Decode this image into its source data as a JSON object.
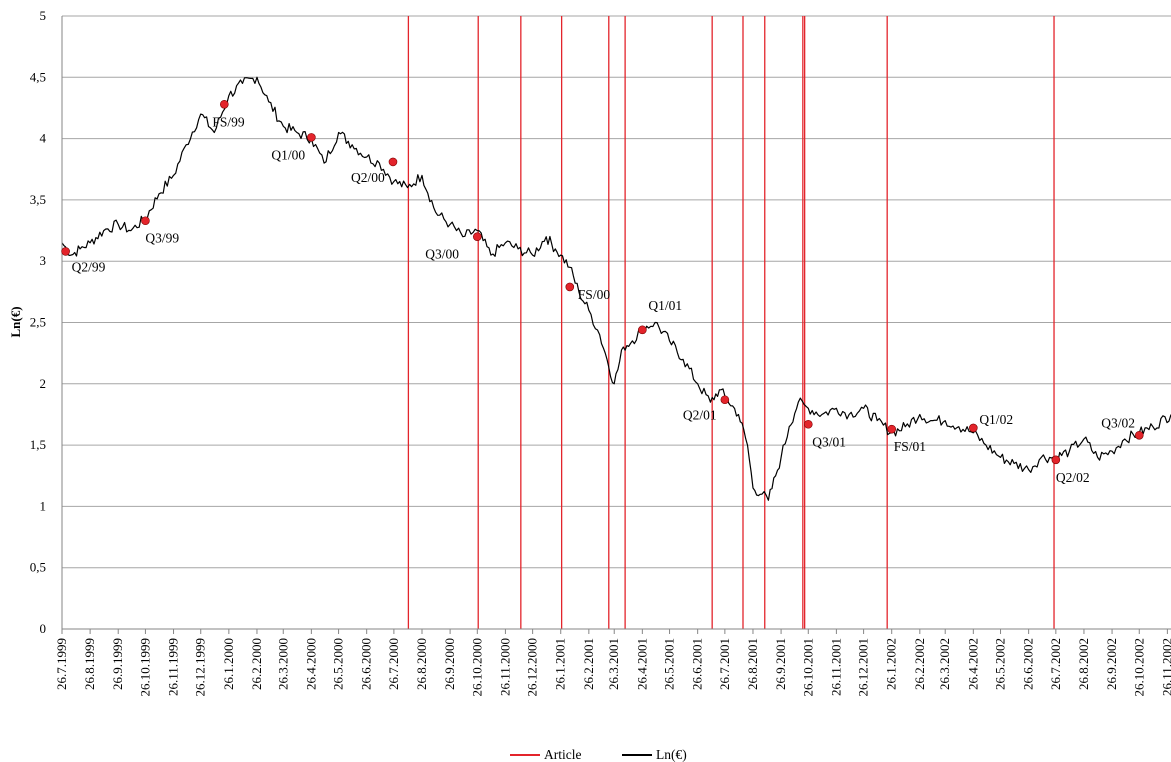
{
  "chart_data": {
    "type": "line",
    "title": "",
    "xlabel": "",
    "ylabel": "Ln(€)",
    "ylim": [
      0,
      5
    ],
    "y_ticks": [
      "0",
      "0,5",
      "1",
      "1,5",
      "2",
      "2,5",
      "3",
      "3,5",
      "4",
      "4,5",
      "5"
    ],
    "x_range": [
      "1999-07-26",
      "2002-11-30"
    ],
    "x_ticks": [
      "26.7.1999",
      "26.8.1999",
      "26.9.1999",
      "26.10.1999",
      "26.11.1999",
      "26.12.1999",
      "26.1.2000",
      "26.2.2000",
      "26.3.2000",
      "26.4.2000",
      "26.5.2000",
      "26.6.2000",
      "26.7.2000",
      "26.8.2000",
      "26.9.2000",
      "26.10.2000",
      "26.11.2000",
      "26.12.2000",
      "26.1.2001",
      "26.2.2001",
      "26.3.2001",
      "26.4.2001",
      "26.5.2001",
      "26.6.2001",
      "26.7.2001",
      "26.8.2001",
      "26.9.2001",
      "26.10.2001",
      "26.11.2001",
      "26.12.2001",
      "26.1.2002",
      "26.2.2002",
      "26.3.2002",
      "26.4.2002",
      "26.5.2002",
      "26.6.2002",
      "26.7.2002",
      "26.8.2002",
      "26.9.2002",
      "26.10.2002",
      "26.11.2002"
    ],
    "grid": true,
    "legend_position": "bottom",
    "colors": {
      "article": "#e3242b",
      "series": "#000000",
      "marker": "#e3242b",
      "grid": "#a6a6a6"
    },
    "series": [
      {
        "name": "Ln(€)",
        "x": [
          "1999-07-26",
          "1999-08-05",
          "1999-08-15",
          "1999-08-26",
          "1999-09-10",
          "1999-09-26",
          "1999-10-10",
          "1999-10-26",
          "1999-11-10",
          "1999-11-26",
          "1999-12-10",
          "1999-12-26",
          "2000-01-10",
          "2000-01-26",
          "2000-02-10",
          "2000-02-26",
          "2000-03-10",
          "2000-03-26",
          "2000-04-10",
          "2000-04-26",
          "2000-05-10",
          "2000-05-26",
          "2000-06-10",
          "2000-06-26",
          "2000-07-10",
          "2000-07-26",
          "2000-08-10",
          "2000-08-26",
          "2000-09-10",
          "2000-09-26",
          "2000-10-10",
          "2000-10-26",
          "2000-11-10",
          "2000-11-26",
          "2000-12-10",
          "2000-12-26",
          "2001-01-10",
          "2001-01-20",
          "2001-01-26",
          "2001-02-05",
          "2001-02-15",
          "2001-02-26",
          "2001-03-10",
          "2001-03-18",
          "2001-03-26",
          "2001-04-05",
          "2001-04-15",
          "2001-04-26",
          "2001-05-10",
          "2001-05-26",
          "2001-06-10",
          "2001-06-26",
          "2001-07-10",
          "2001-07-20",
          "2001-07-26",
          "2001-08-10",
          "2001-08-20",
          "2001-08-26",
          "2001-09-05",
          "2001-09-12",
          "2001-09-20",
          "2001-09-26",
          "2001-10-05",
          "2001-10-15",
          "2001-10-26",
          "2001-11-10",
          "2001-11-26",
          "2001-12-10",
          "2001-12-26",
          "2002-01-10",
          "2002-01-26",
          "2002-02-10",
          "2002-02-26",
          "2002-03-10",
          "2002-03-26",
          "2002-04-10",
          "2002-04-26",
          "2002-05-10",
          "2002-05-26",
          "2002-06-10",
          "2002-06-26",
          "2002-07-10",
          "2002-07-26",
          "2002-08-10",
          "2002-08-26",
          "2002-09-10",
          "2002-09-26",
          "2002-10-10",
          "2002-10-26",
          "2002-11-10",
          "2002-11-30"
        ],
        "values": [
          3.15,
          3.05,
          3.1,
          3.15,
          3.25,
          3.3,
          3.25,
          3.35,
          3.55,
          3.7,
          3.95,
          4.2,
          4.05,
          4.35,
          4.45,
          4.5,
          4.3,
          4.1,
          4.05,
          4.0,
          3.8,
          4.05,
          3.95,
          3.85,
          3.8,
          3.65,
          3.6,
          3.7,
          3.4,
          3.3,
          3.2,
          3.25,
          3.05,
          3.15,
          3.1,
          3.05,
          3.2,
          3.1,
          3.05,
          2.95,
          2.75,
          2.6,
          2.4,
          2.2,
          2.0,
          2.3,
          2.35,
          2.45,
          2.5,
          2.35,
          2.2,
          2.0,
          1.85,
          1.95,
          1.9,
          1.75,
          1.5,
          1.15,
          1.1,
          1.05,
          1.25,
          1.4,
          1.65,
          1.85,
          1.8,
          1.75,
          1.8,
          1.75,
          1.8,
          1.7,
          1.6,
          1.65,
          1.75,
          1.7,
          1.7,
          1.65,
          1.6,
          1.5,
          1.4,
          1.35,
          1.3,
          1.4,
          1.4,
          1.45,
          1.55,
          1.4,
          1.45,
          1.55,
          1.6,
          1.65,
          1.75
        ]
      }
    ],
    "article_dates": [
      "2000-08-11",
      "2000-10-27",
      "2000-12-13",
      "2001-01-27",
      "2001-03-20",
      "2001-04-07",
      "2001-07-12",
      "2001-08-15",
      "2001-09-08",
      "2001-10-20",
      "2001-10-22",
      "2002-01-21",
      "2002-07-24"
    ],
    "annotations": [
      {
        "label": "Q2/99",
        "date": "1999-07-30",
        "value": 3.08
      },
      {
        "label": "Q3/99",
        "date": "1999-10-26",
        "value": 3.33
      },
      {
        "label": "FS/99",
        "date": "2000-01-21",
        "value": 4.28
      },
      {
        "label": "Q1/00",
        "date": "2000-04-26",
        "value": 4.01
      },
      {
        "label": "Q2/00",
        "date": "2000-07-25",
        "value": 3.81
      },
      {
        "label": "Q3/00",
        "date": "2000-10-26",
        "value": 3.2
      },
      {
        "label": "FS/00",
        "date": "2001-02-05",
        "value": 2.79
      },
      {
        "label": "Q1/01",
        "date": "2001-04-26",
        "value": 2.44
      },
      {
        "label": "Q2/01",
        "date": "2001-07-26",
        "value": 1.87
      },
      {
        "label": "Q3/01",
        "date": "2001-10-26",
        "value": 1.67
      },
      {
        "label": "FS/01",
        "date": "2002-01-26",
        "value": 1.63
      },
      {
        "label": "Q1/02",
        "date": "2002-04-26",
        "value": 1.64
      },
      {
        "label": "Q2/02",
        "date": "2002-07-26",
        "value": 1.38
      },
      {
        "label": "Q3/02",
        "date": "2002-10-26",
        "value": 1.58
      }
    ],
    "legend": [
      "Article",
      "Ln(€)"
    ]
  }
}
